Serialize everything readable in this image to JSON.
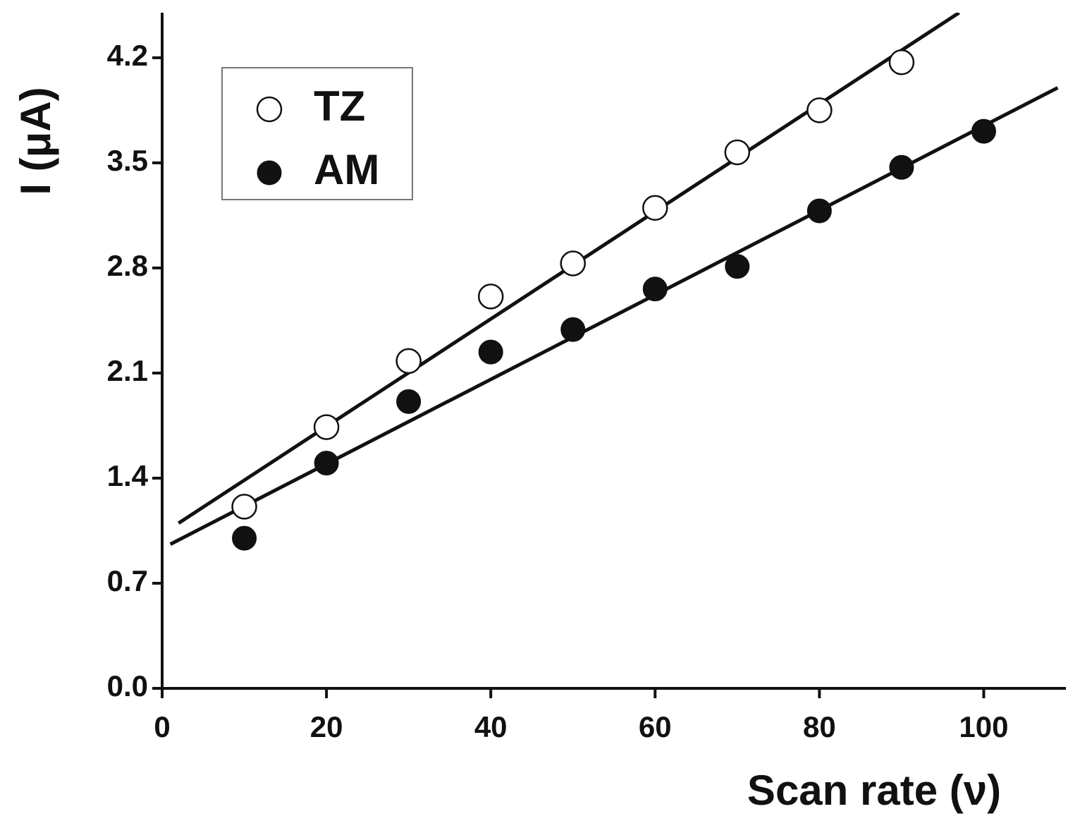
{
  "chart_data": {
    "type": "scatter",
    "x_label": "Scan rate (ν)",
    "y_label": "I (μA)",
    "xlim": [
      0,
      110
    ],
    "ylim": [
      0,
      4.5
    ],
    "xticks": [
      0,
      20,
      40,
      60,
      80,
      100
    ],
    "yticks": [
      {
        "value": 0,
        "label": "0.0"
      },
      0.7,
      1.4,
      2.1,
      2.8,
      3.5,
      4.2
    ],
    "grid": false,
    "legend": "upper left",
    "series": [
      {
        "name": "TZ",
        "color": "#111111",
        "marker": "open",
        "x": [
          10,
          20,
          30,
          40,
          50,
          60,
          70,
          80,
          90
        ],
        "values": [
          1.21,
          1.74,
          2.18,
          2.61,
          2.83,
          3.2,
          3.57,
          3.85,
          4.17
        ]
      },
      {
        "name": "AM",
        "color": "#111111",
        "marker": "filled",
        "x": [
          10,
          20,
          30,
          40,
          50,
          60,
          70,
          80,
          90,
          100
        ],
        "values": [
          1.0,
          1.5,
          1.91,
          2.24,
          2.39,
          2.66,
          2.81,
          3.18,
          3.47,
          3.71
        ]
      }
    ],
    "fits": [
      {
        "color": "#111111",
        "x": [
          2,
          97
        ],
        "values": [
          1.1,
          4.5
        ]
      },
      {
        "color": "#111111",
        "x": [
          1,
          109
        ],
        "values": [
          0.96,
          4.0
        ]
      }
    ]
  }
}
